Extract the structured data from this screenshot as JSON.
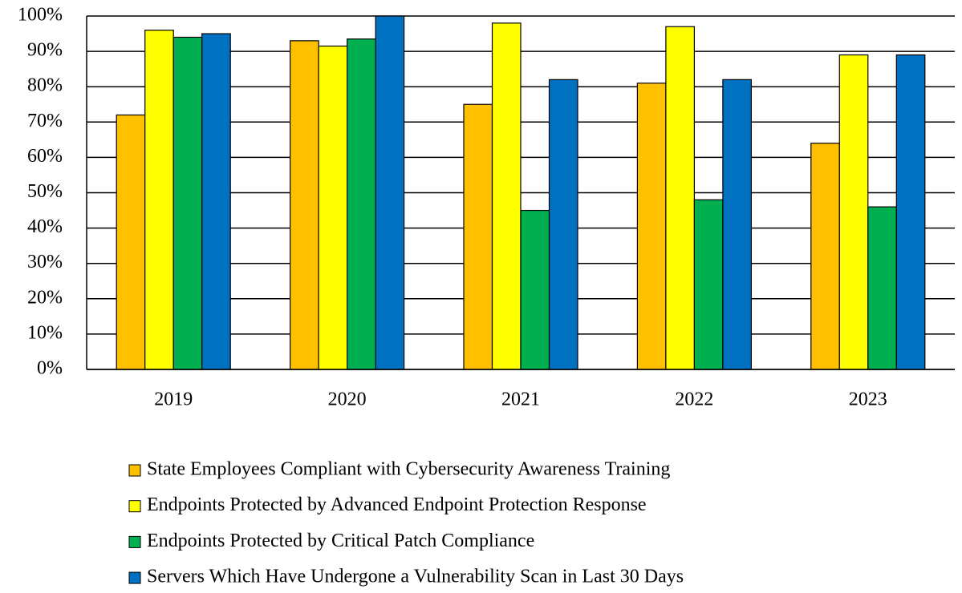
{
  "chart_data": {
    "type": "bar",
    "categories": [
      "2019",
      "2020",
      "2021",
      "2022",
      "2023"
    ],
    "series": [
      {
        "name": "State Employees Compliant with Cybersecurity Awareness Training",
        "color": "#FFC000",
        "values": [
          72,
          93,
          75,
          81,
          64
        ]
      },
      {
        "name": "Endpoints Protected by Advanced Endpoint Protection Response",
        "color": "#FFFF00",
        "values": [
          96,
          91.5,
          98,
          97,
          89
        ]
      },
      {
        "name": "Endpoints Protected by Critical Patch Compliance",
        "color": "#00B050",
        "values": [
          94,
          93.5,
          45,
          48,
          46
        ]
      },
      {
        "name": "Servers Which Have Undergone a Vulnerability Scan in Last 30 Days",
        "color": "#0070C0",
        "values": [
          95,
          100,
          82,
          82,
          89
        ]
      }
    ],
    "ylim": [
      0,
      100
    ],
    "yticks": [
      {
        "value": 0,
        "label": "0%"
      },
      {
        "value": 10,
        "label": "10%"
      },
      {
        "value": 20,
        "label": "20%"
      },
      {
        "value": 30,
        "label": "30%"
      },
      {
        "value": 40,
        "label": "40%"
      },
      {
        "value": 50,
        "label": "50%"
      },
      {
        "value": 60,
        "label": "60%"
      },
      {
        "value": 70,
        "label": "70%"
      },
      {
        "value": 80,
        "label": "80%"
      },
      {
        "value": 90,
        "label": "90%"
      },
      {
        "value": 100,
        "label": "100%"
      }
    ],
    "grid": true,
    "legend": "bottom"
  }
}
